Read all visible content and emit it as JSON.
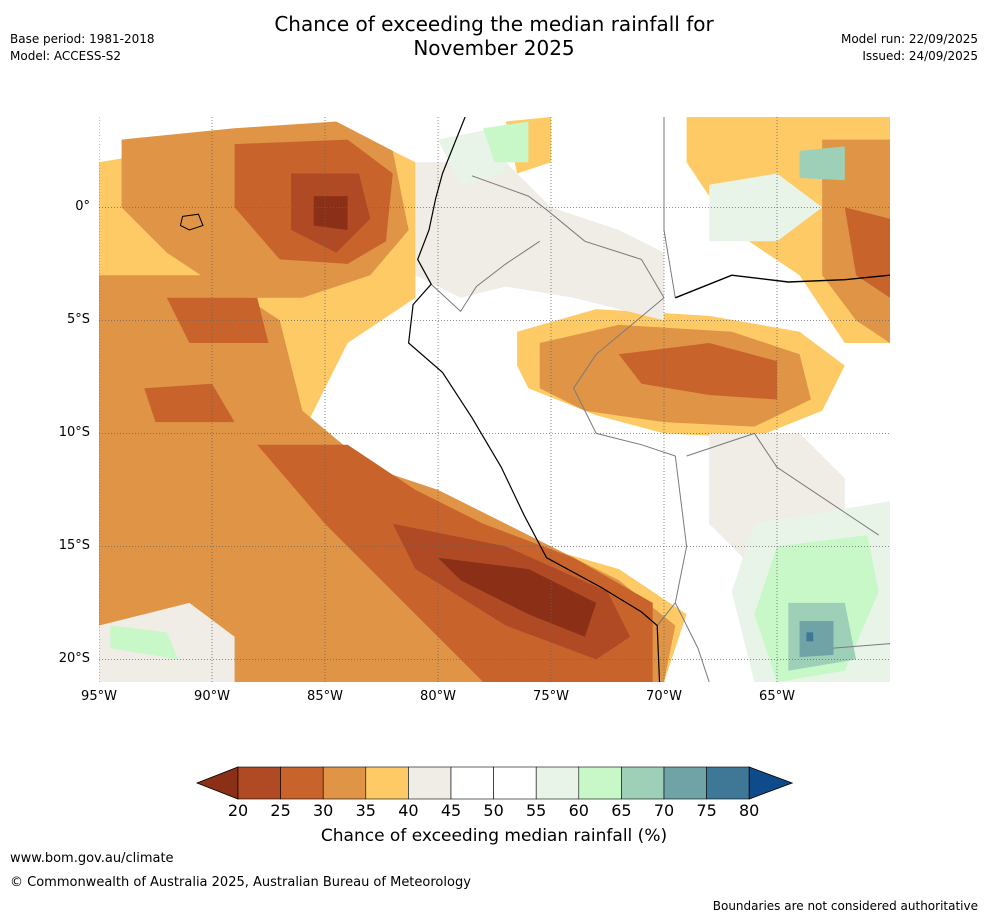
{
  "title": "Chance of exceeding the median rainfall for\nNovember 2025",
  "meta_left": {
    "base_period": "Base period: 1981-2018",
    "model": "Model: ACCESS-S2"
  },
  "meta_right": {
    "model_run": "Model run: 22/09/2025",
    "issued": "Issued: 24/09/2025"
  },
  "lat_ticks": [
    "0°",
    "5°S",
    "10°S",
    "15°S",
    "20°S"
  ],
  "lat_values": [
    0,
    -5,
    -10,
    -15,
    -20
  ],
  "lon_ticks": [
    "95°W",
    "90°W",
    "85°W",
    "80°W",
    "75°W",
    "70°W",
    "65°W"
  ],
  "lon_values": [
    -95,
    -90,
    -85,
    -80,
    -75,
    -70,
    -65
  ],
  "extent": {
    "lon_min": -95,
    "lon_max": -60,
    "lat_min": -21,
    "lat_max": 4
  },
  "colorbar": {
    "title": "Chance of exceeding median rainfall (%)",
    "labels": [
      "20",
      "25",
      "30",
      "35",
      "40",
      "45",
      "50",
      "55",
      "60",
      "65",
      "70",
      "75",
      "80"
    ],
    "under_color": "#8b3016",
    "over_color": "#0f4a8a",
    "colors": [
      "#b04a24",
      "#c9632c",
      "#df9446",
      "#fdca66",
      "#f0ece6",
      "#ffffff",
      "#ffffff",
      "#e8f4e8",
      "#c8f7c8",
      "#9ed0b8",
      "#6fa3a6",
      "#3f7896"
    ]
  },
  "map_regions": [
    {
      "level": "#fdca66",
      "pts": [
        [
          -95,
          2
        ],
        [
          -89,
          3
        ],
        [
          -84,
          3.5
        ],
        [
          -81,
          2
        ],
        [
          -81,
          -4
        ],
        [
          -84,
          -6
        ],
        [
          -87,
          -12
        ],
        [
          -83,
          -13
        ],
        [
          -79,
          -14
        ],
        [
          -72,
          -16
        ],
        [
          -69,
          -18
        ],
        [
          -70,
          -21
        ],
        [
          -95,
          -21
        ],
        [
          -95,
          -18
        ],
        [
          -91,
          -16.5
        ],
        [
          -95,
          -14
        ]
      ]
    },
    {
      "level": "#fdca66",
      "pts": [
        [
          -76.5,
          -5.5
        ],
        [
          -73,
          -4.5
        ],
        [
          -68,
          -4.8
        ],
        [
          -64,
          -5.5
        ],
        [
          -62,
          -7
        ],
        [
          -63,
          -9
        ],
        [
          -66,
          -10.2
        ],
        [
          -70,
          -10
        ],
        [
          -73,
          -9.2
        ],
        [
          -76,
          -8
        ],
        [
          -76.5,
          -7
        ]
      ]
    },
    {
      "level": "#fdca66",
      "pts": [
        [
          -69,
          4
        ],
        [
          -60,
          4
        ],
        [
          -60,
          -6
        ],
        [
          -62,
          -6
        ],
        [
          -64,
          -3
        ],
        [
          -67,
          -1
        ],
        [
          -69,
          2
        ]
      ]
    },
    {
      "level": "#fdca66",
      "pts": [
        [
          -77,
          3.8
        ],
        [
          -75,
          4
        ],
        [
          -75,
          2
        ],
        [
          -76.5,
          1.5
        ]
      ]
    },
    {
      "level": "#df9446",
      "pts": [
        [
          -94,
          3
        ],
        [
          -89,
          3.5
        ],
        [
          -84.5,
          3.8
        ],
        [
          -82,
          2.5
        ],
        [
          -81.3,
          -1
        ],
        [
          -83,
          -3
        ],
        [
          -86,
          -4
        ],
        [
          -89,
          -4
        ],
        [
          -92,
          -2
        ],
        [
          -94,
          0
        ]
      ]
    },
    {
      "level": "#df9446",
      "pts": [
        [
          -95,
          -3
        ],
        [
          -90,
          -3
        ],
        [
          -87,
          -5
        ],
        [
          -86,
          -9
        ],
        [
          -83,
          -11.5
        ],
        [
          -80,
          -12.5
        ],
        [
          -76,
          -14.5
        ],
        [
          -72,
          -16.5
        ],
        [
          -69.5,
          -18.5
        ],
        [
          -70,
          -21
        ],
        [
          -89,
          -21
        ],
        [
          -93,
          -19
        ],
        [
          -95,
          -18.5
        ]
      ]
    },
    {
      "level": "#df9446",
      "pts": [
        [
          -75.5,
          -6
        ],
        [
          -72,
          -5.2
        ],
        [
          -67,
          -5.5
        ],
        [
          -64,
          -6.5
        ],
        [
          -63.5,
          -8.5
        ],
        [
          -66,
          -9.7
        ],
        [
          -70,
          -9.5
        ],
        [
          -73.5,
          -9
        ],
        [
          -75.5,
          -8
        ]
      ]
    },
    {
      "level": "#df9446",
      "pts": [
        [
          -63,
          3
        ],
        [
          -60,
          3
        ],
        [
          -60,
          -6
        ],
        [
          -61.5,
          -5
        ],
        [
          -63,
          -3
        ],
        [
          -63,
          0
        ]
      ]
    },
    {
      "level": "#c9632c",
      "pts": [
        [
          -89,
          2.8
        ],
        [
          -84,
          3
        ],
        [
          -82,
          1.5
        ],
        [
          -82.3,
          -1.5
        ],
        [
          -84,
          -2.5
        ],
        [
          -87,
          -2.3
        ],
        [
          -89,
          0
        ]
      ]
    },
    {
      "level": "#c9632c",
      "pts": [
        [
          -88,
          -10.5
        ],
        [
          -84,
          -10.5
        ],
        [
          -81,
          -12.5
        ],
        [
          -78,
          -14
        ],
        [
          -74,
          -15.5
        ],
        [
          -70.5,
          -17.5
        ],
        [
          -70.5,
          -21
        ],
        [
          -78,
          -21
        ],
        [
          -81,
          -18
        ],
        [
          -85,
          -14
        ]
      ]
    },
    {
      "level": "#c9632c",
      "pts": [
        [
          -72,
          -6.5
        ],
        [
          -68,
          -6
        ],
        [
          -65,
          -6.8
        ],
        [
          -65,
          -8.5
        ],
        [
          -68,
          -8.3
        ],
        [
          -71,
          -7.8
        ]
      ]
    },
    {
      "level": "#c9632c",
      "pts": [
        [
          -62,
          0
        ],
        [
          -60,
          -0.5
        ],
        [
          -60,
          -4
        ],
        [
          -61.5,
          -3
        ]
      ]
    },
    {
      "level": "#c9632c",
      "pts": [
        [
          -92,
          -4
        ],
        [
          -88,
          -4
        ],
        [
          -87.5,
          -6
        ],
        [
          -91,
          -6
        ]
      ]
    },
    {
      "level": "#c9632c",
      "pts": [
        [
          -93,
          -8
        ],
        [
          -90,
          -7.8
        ],
        [
          -89,
          -9.5
        ],
        [
          -92.5,
          -9.5
        ]
      ]
    },
    {
      "level": "#b04a24",
      "pts": [
        [
          -86.5,
          1.5
        ],
        [
          -83.5,
          1.5
        ],
        [
          -83,
          -0.5
        ],
        [
          -84.5,
          -2
        ],
        [
          -86.5,
          -1
        ]
      ]
    },
    {
      "level": "#b04a24",
      "pts": [
        [
          -82,
          -14
        ],
        [
          -77,
          -15
        ],
        [
          -72.5,
          -17
        ],
        [
          -71.5,
          -19
        ],
        [
          -73,
          -20
        ],
        [
          -77,
          -18.5
        ],
        [
          -81,
          -16
        ]
      ]
    },
    {
      "level": "#8b3016",
      "pts": [
        [
          -85.5,
          0.5
        ],
        [
          -84,
          0.5
        ],
        [
          -84,
          -1
        ],
        [
          -85.5,
          -0.8
        ]
      ]
    },
    {
      "level": "#8b3016",
      "pts": [
        [
          -80,
          -15.5
        ],
        [
          -76,
          -16
        ],
        [
          -73,
          -17.5
        ],
        [
          -73.5,
          -19
        ],
        [
          -76,
          -18
        ],
        [
          -79,
          -16.5
        ]
      ]
    },
    {
      "level": "#f0ece6",
      "pts": [
        [
          -81,
          2
        ],
        [
          -77,
          2
        ],
        [
          -75,
          0
        ],
        [
          -72,
          -1
        ],
        [
          -70,
          -2
        ],
        [
          -70,
          -5
        ],
        [
          -74,
          -4
        ],
        [
          -77,
          -3.5
        ],
        [
          -79,
          -4
        ],
        [
          -81,
          -3
        ]
      ]
    },
    {
      "level": "#f0ece6",
      "pts": [
        [
          -68,
          -10
        ],
        [
          -64,
          -10
        ],
        [
          -62,
          -12
        ],
        [
          -62,
          -16
        ],
        [
          -66,
          -16
        ],
        [
          -68,
          -14
        ]
      ]
    },
    {
      "level": "#f0ece6",
      "pts": [
        [
          -95,
          -18.5
        ],
        [
          -91,
          -17.5
        ],
        [
          -89,
          -19
        ],
        [
          -89,
          -21
        ],
        [
          -95,
          -21
        ]
      ]
    },
    {
      "level": "#e8f4e8",
      "pts": [
        [
          -66,
          -14
        ],
        [
          -60,
          -13
        ],
        [
          -60,
          -21
        ],
        [
          -66,
          -21
        ],
        [
          -67,
          -17
        ]
      ]
    },
    {
      "level": "#e8f4e8",
      "pts": [
        [
          -80,
          3
        ],
        [
          -77.5,
          3.5
        ],
        [
          -77,
          1.5
        ],
        [
          -79,
          1
        ]
      ]
    },
    {
      "level": "#e8f4e8",
      "pts": [
        [
          -68,
          1
        ],
        [
          -65,
          1.5
        ],
        [
          -63,
          0
        ],
        [
          -65,
          -1.5
        ],
        [
          -68,
          -1.5
        ]
      ]
    },
    {
      "level": "#c8f7c8",
      "pts": [
        [
          -65,
          -15
        ],
        [
          -61,
          -14.5
        ],
        [
          -60.5,
          -17
        ],
        [
          -62,
          -20.5
        ],
        [
          -65,
          -21
        ],
        [
          -66,
          -18
        ]
      ]
    },
    {
      "level": "#c8f7c8",
      "pts": [
        [
          -78,
          3.5
        ],
        [
          -76,
          3.8
        ],
        [
          -76,
          2
        ],
        [
          -77.5,
          2
        ]
      ]
    },
    {
      "level": "#c8f7c8",
      "pts": [
        [
          -94.5,
          -18.5
        ],
        [
          -92,
          -18.8
        ],
        [
          -91.5,
          -20
        ],
        [
          -94.5,
          -19.5
        ]
      ]
    },
    {
      "level": "#9ed0b8",
      "pts": [
        [
          -64.5,
          -17.5
        ],
        [
          -62,
          -17.5
        ],
        [
          -61.5,
          -20
        ],
        [
          -64.5,
          -20.5
        ]
      ]
    },
    {
      "level": "#9ed0b8",
      "pts": [
        [
          -64,
          2.5
        ],
        [
          -62,
          2.7
        ],
        [
          -62,
          1.2
        ],
        [
          -64,
          1.3
        ]
      ]
    },
    {
      "level": "#6fa3a6",
      "pts": [
        [
          -64,
          -18.3
        ],
        [
          -62.5,
          -18.3
        ],
        [
          -62.5,
          -19.8
        ],
        [
          -64,
          -19.9
        ]
      ]
    },
    {
      "level": "#3f7896",
      "pts": [
        [
          -63.7,
          -18.8
        ],
        [
          -63.4,
          -18.8
        ],
        [
          -63.4,
          -19.2
        ],
        [
          -63.7,
          -19.2
        ]
      ]
    }
  ],
  "coastline": [
    [
      -78.8,
      4
    ],
    [
      -79.8,
      1.5
    ],
    [
      -80.1,
      0.4
    ],
    [
      -80.4,
      -1
    ],
    [
      -80.9,
      -2.3
    ],
    [
      -80.3,
      -3.4
    ],
    [
      -81.1,
      -4.3
    ],
    [
      -81.3,
      -6
    ],
    [
      -79.8,
      -7.3
    ],
    [
      -78.5,
      -9.3
    ],
    [
      -77.2,
      -11.5
    ],
    [
      -76.2,
      -13.6
    ],
    [
      -75.2,
      -15.5
    ],
    [
      -72.8,
      -16.8
    ],
    [
      -71,
      -17.9
    ],
    [
      -70.3,
      -18.5
    ],
    [
      -70.2,
      -21
    ]
  ],
  "galapagos": [
    [
      -91.3,
      -0.4
    ],
    [
      -90.6,
      -0.3
    ],
    [
      -90.4,
      -0.8
    ],
    [
      -91,
      -1
    ],
    [
      -91.4,
      -0.8
    ]
  ],
  "amazon_river": [
    [
      -69.5,
      -4
    ],
    [
      -67,
      -3
    ],
    [
      -64.5,
      -3.3
    ],
    [
      -62,
      -3.2
    ],
    [
      -60,
      -3
    ]
  ],
  "borders": [
    [
      [
        -78.5,
        1.4
      ],
      [
        -76,
        0.5
      ],
      [
        -75.2,
        -0.1
      ],
      [
        -73.5,
        -1.5
      ],
      [
        -71,
        -2.3
      ],
      [
        -70,
        -4
      ]
    ],
    [
      [
        -80.3,
        -3.4
      ],
      [
        -79,
        -4.6
      ],
      [
        -78.3,
        -3.5
      ],
      [
        -77,
        -2.5
      ],
      [
        -75.5,
        -1.5
      ]
    ],
    [
      [
        -70,
        -4
      ],
      [
        -73,
        -6.5
      ],
      [
        -74,
        -8
      ],
      [
        -73,
        -10
      ],
      [
        -71,
        -10.5
      ],
      [
        -69.5,
        -11
      ],
      [
        -69,
        -15
      ],
      [
        -69.5,
        -17.5
      ],
      [
        -70.3,
        -18.5
      ]
    ],
    [
      [
        -69,
        -11
      ],
      [
        -66,
        -10
      ],
      [
        -65,
        -11.5
      ],
      [
        -62,
        -13.5
      ],
      [
        -60.5,
        -14.5
      ]
    ],
    [
      [
        -69.5,
        -17.5
      ],
      [
        -68.5,
        -19.5
      ],
      [
        -68,
        -21
      ]
    ],
    [
      [
        -62.5,
        -19.5
      ],
      [
        -60,
        -19.3
      ]
    ],
    [
      [
        -70,
        4
      ],
      [
        -70,
        -1
      ],
      [
        -69.5,
        -4
      ]
    ]
  ]
}
